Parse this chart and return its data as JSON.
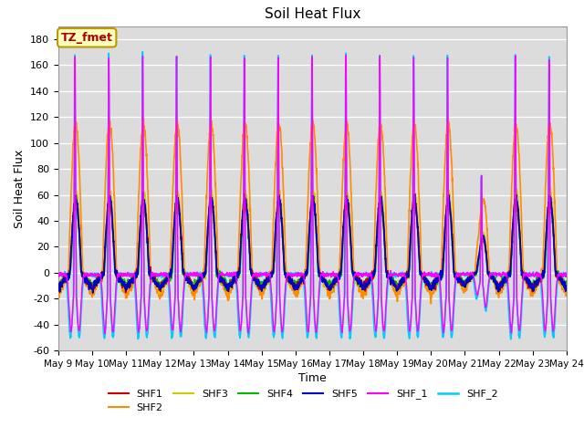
{
  "title": "Soil Heat Flux",
  "xlabel": "Time",
  "ylabel": "Soil Heat Flux",
  "ylim": [
    -60,
    190
  ],
  "yticks": [
    -60,
    -40,
    -20,
    0,
    20,
    40,
    60,
    80,
    100,
    120,
    140,
    160,
    180
  ],
  "n_days": 15,
  "start_day": 9,
  "ppd": 144,
  "bg_color": "#dcdcdc",
  "grid_color": "#ffffff",
  "series": {
    "SHF1": {
      "color": "#cc0000",
      "lw": 1.2,
      "zorder": 4
    },
    "SHF2": {
      "color": "#ff8c00",
      "lw": 1.2,
      "zorder": 3
    },
    "SHF3": {
      "color": "#cccc00",
      "lw": 1.2,
      "zorder": 3
    },
    "SHF4": {
      "color": "#00bb00",
      "lw": 1.2,
      "zorder": 3
    },
    "SHF5": {
      "color": "#0000cc",
      "lw": 1.2,
      "zorder": 4
    },
    "SHF_1": {
      "color": "#ff00ff",
      "lw": 1.0,
      "zorder": 5
    },
    "SHF_2": {
      "color": "#00ccff",
      "lw": 1.2,
      "zorder": 2
    }
  },
  "annotation_text": "TZ_fmet",
  "annotation_color": "#aa0000",
  "annotation_bg": "#ffffbb",
  "annotation_border": "#bb9900"
}
